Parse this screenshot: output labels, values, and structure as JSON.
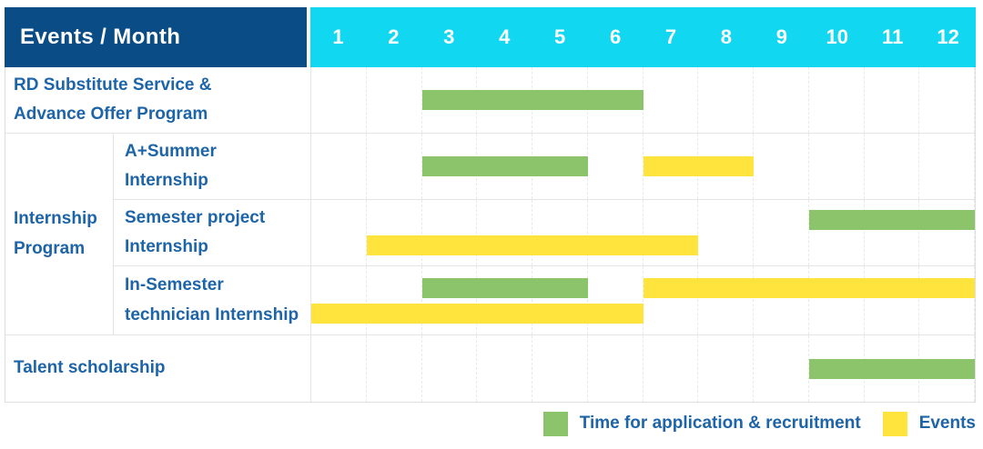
{
  "colors": {
    "header_bg": "#0a4c85",
    "month_header_bg": "#12d7f0",
    "application": "#8cc46c",
    "event": "#ffe43d",
    "label_text": "#1d64a8"
  },
  "chart_data": {
    "type": "table",
    "subtype": "gantt",
    "title": "Events / Month",
    "xlabel": "Month",
    "x_range": [
      1,
      12
    ],
    "grid": true,
    "legend_position": "bottom-right",
    "columns": [
      "1",
      "2",
      "3",
      "4",
      "5",
      "6",
      "7",
      "8",
      "9",
      "10",
      "11",
      "12"
    ],
    "group_label": "Internship\nProgram",
    "rows": [
      {
        "label": "RD Substitute Service &\nAdvance Offer Program",
        "group": null,
        "bars": [
          {
            "type": "application",
            "start_month": 3,
            "end_month": 6,
            "band": "center"
          }
        ]
      },
      {
        "label": "A+Summer\nInternship",
        "group": "Internship Program",
        "bars": [
          {
            "type": "application",
            "start_month": 3,
            "end_month": 5,
            "band": "center"
          },
          {
            "type": "event",
            "start_month": 7,
            "end_month": 8,
            "band": "center"
          }
        ]
      },
      {
        "label": "Semester project\nInternship",
        "group": "Internship Program",
        "bars": [
          {
            "type": "application",
            "start_month": 10,
            "end_month": 12,
            "band": "upper"
          },
          {
            "type": "event",
            "start_month": 2,
            "end_month": 7,
            "band": "lower"
          }
        ]
      },
      {
        "label": "In-Semester\ntechnician Internship",
        "group": "Internship Program",
        "bars": [
          {
            "type": "application",
            "start_month": 3,
            "end_month": 5,
            "band": "upper"
          },
          {
            "type": "event",
            "start_month": 7,
            "end_month": 12,
            "band": "upper"
          },
          {
            "type": "event",
            "start_month": 1,
            "end_month": 6,
            "band": "lower"
          }
        ]
      },
      {
        "label": "Talent scholarship",
        "group": null,
        "bars": [
          {
            "type": "application",
            "start_month": 10,
            "end_month": 12,
            "band": "center"
          }
        ]
      }
    ],
    "legend": [
      {
        "color_key": "application",
        "label": "Time for application & recruitment"
      },
      {
        "color_key": "event",
        "label": "Events"
      }
    ]
  }
}
